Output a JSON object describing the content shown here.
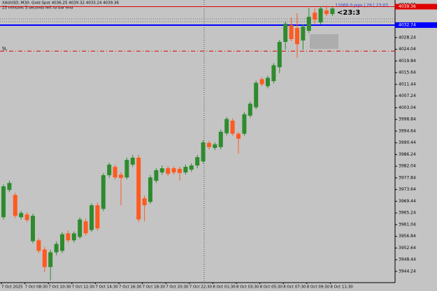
{
  "chart_data": {
    "type": "candlestick",
    "title": "XAUUSD, M30:  Gold Spot  4036.25 4039.32 4033.24 4039.36",
    "subtitle": "23 minutes 3 seconds left to bar end",
    "info_text": "11060.0 pips | 29 | 23:03",
    "timer_text": "<23:3",
    "up_color": "#2e8b2e",
    "down_color": "#ff5a1f",
    "categories": [
      "7 Oct 2025",
      null,
      null,
      null,
      "7 Oct 08:30",
      null,
      null,
      null,
      "7 Oct 10:30",
      null,
      null,
      null,
      "7 Oct 12:30",
      null,
      null,
      null,
      "7 Oct 14:30",
      null,
      null,
      null,
      "7 Oct 16:30",
      null,
      null,
      null,
      "7 Oct 18:30",
      null,
      null,
      null,
      "7 Oct 20:30",
      null,
      null,
      null,
      "7 Oct 22:30",
      null,
      null,
      null,
      "8 Oct 01:30",
      null,
      null,
      null,
      "8 Oct 03:30",
      null,
      null,
      null,
      "8 Oct 05:30",
      null,
      null,
      null,
      "8 Oct 07:30",
      null,
      null,
      null,
      "8 Oct 09:30",
      null,
      null,
      null,
      "8 Oct 11:30"
    ],
    "open": [
      3963.7,
      3973.5,
      3971.7,
      3963.7,
      3964.7,
      3955.1,
      3955.4,
      3952.1,
      3945.8,
      3951.1,
      3951.6,
      3957.9,
      3955.4,
      3956.6,
      3962.2,
      3959.1,
      3968.0,
      3966.7,
      3978.8,
      3981.8,
      3979.0,
      3978.0,
      3982.6,
      3985.1,
      3970.5,
      3969.2,
      3976.8,
      3979.8,
      3981.3,
      3981.3,
      3981.1,
      3979.8,
      3980.8,
      3982.3,
      3983.8,
      3990.4,
      3988.6,
      3988.9,
      3993.9,
      3998.4,
      3993.7,
      3993.7,
      4000.2,
      4003.2,
      4013.3,
      4010.8,
      4012.6,
      4017.6,
      4026.7,
      4032.7,
      4031.7,
      4027.2,
      4030.7,
      4037.2,
      4033.7,
      4038.0,
      4036.7
    ],
    "high": [
      3975.5,
      3976.8,
      3972.5,
      3966.0,
      3965.5,
      3965.0,
      3956.1,
      3953.0,
      3952.0,
      3955.0,
      3958.4,
      3958.9,
      3958.6,
      3963.7,
      3963.2,
      3968.7,
      3969.0,
      3979.5,
      3983.3,
      3982.6,
      3980.0,
      3985.1,
      3986.1,
      3986.1,
      3971.5,
      3978.8,
      3981.3,
      3982.3,
      3982.1,
      3982.0,
      3981.8,
      3982.6,
      3983.1,
      3986.1,
      3991.4,
      3991.1,
      3990.6,
      3995.2,
      3999.7,
      3999.2,
      3994.4,
      4001.5,
      4005.3,
      4012.8,
      4014.0,
      4014.6,
      4019.1,
      4027.4,
      4034.0,
      4035.5,
      4037.0,
      4033.0,
      4039.0,
      4038.8,
      4039.5,
      4039.8,
      4039.2
    ],
    "low": [
      3962.9,
      3972.7,
      3963.4,
      3962.9,
      3961.9,
      3954.4,
      3950.8,
      3944.0,
      3941.0,
      3950.0,
      3950.8,
      3954.6,
      3954.6,
      3955.9,
      3957.1,
      3958.4,
      3958.9,
      3965.9,
      3977.8,
      3977.3,
      3968.0,
      3977.3,
      3981.8,
      3961.9,
      3962.2,
      3968.5,
      3976.0,
      3979.0,
      3978.5,
      3979.0,
      3976.8,
      3979.0,
      3980.0,
      3981.3,
      3983.1,
      3988.1,
      3987.9,
      3988.1,
      3993.1,
      3993.0,
      3986.5,
      3993.0,
      3999.5,
      4002.5,
      4010.8,
      4010.0,
      4011.8,
      4015.5,
      4024.0,
      4027.0,
      4021.0,
      4024.0,
      4029.9,
      4033.2,
      4033.0,
      4036.0,
      4036.0
    ],
    "close": [
      3974.8,
      3976.0,
      3964.2,
      3965.2,
      3962.7,
      3964.2,
      3951.6,
      3945.8,
      3951.1,
      3954.1,
      3957.6,
      3955.4,
      3957.9,
      3962.9,
      3957.9,
      3968.0,
      3959.7,
      3978.8,
      3982.6,
      3978.0,
      3977.8,
      3984.3,
      3985.1,
      3962.9,
      3968.0,
      3978.0,
      3980.6,
      3981.3,
      3979.3,
      3979.8,
      3979.6,
      3981.8,
      3982.3,
      3985.3,
      3990.6,
      3988.9,
      3989.9,
      3994.4,
      3999.0,
      3993.7,
      3991.9,
      4000.7,
      4004.5,
      4012.0,
      4011.5,
      4013.8,
      4018.3,
      4026.7,
      4033.2,
      4027.7,
      4025.9,
      4032.2,
      4035.7,
      4034.7,
      4038.7,
      4036.7,
      4038.7
    ],
    "ylim": [
      3940.2,
      4041.0
    ],
    "yticks": [
      3944.24,
      3948.44,
      3952.64,
      3956.84,
      3961.04,
      3965.24,
      3969.44,
      3973.64,
      3977.84,
      3982.04,
      3986.24,
      3990.44,
      3994.64,
      3998.84,
      4003.04,
      4007.24,
      4011.44,
      4015.64,
      4019.84,
      4024.04,
      4028.24,
      {
        "value": 4040.0,
        "label": "4040.00"
      }
    ],
    "price_lines": [
      {
        "value": 4039.36,
        "label": "4039.36",
        "color": "#e00000"
      },
      {
        "value": 4032.74,
        "label": "4032.74",
        "color": "#0000ff"
      }
    ],
    "sl_line": {
      "value": 4023.4,
      "label": "SL",
      "color": "#e00000"
    }
  }
}
